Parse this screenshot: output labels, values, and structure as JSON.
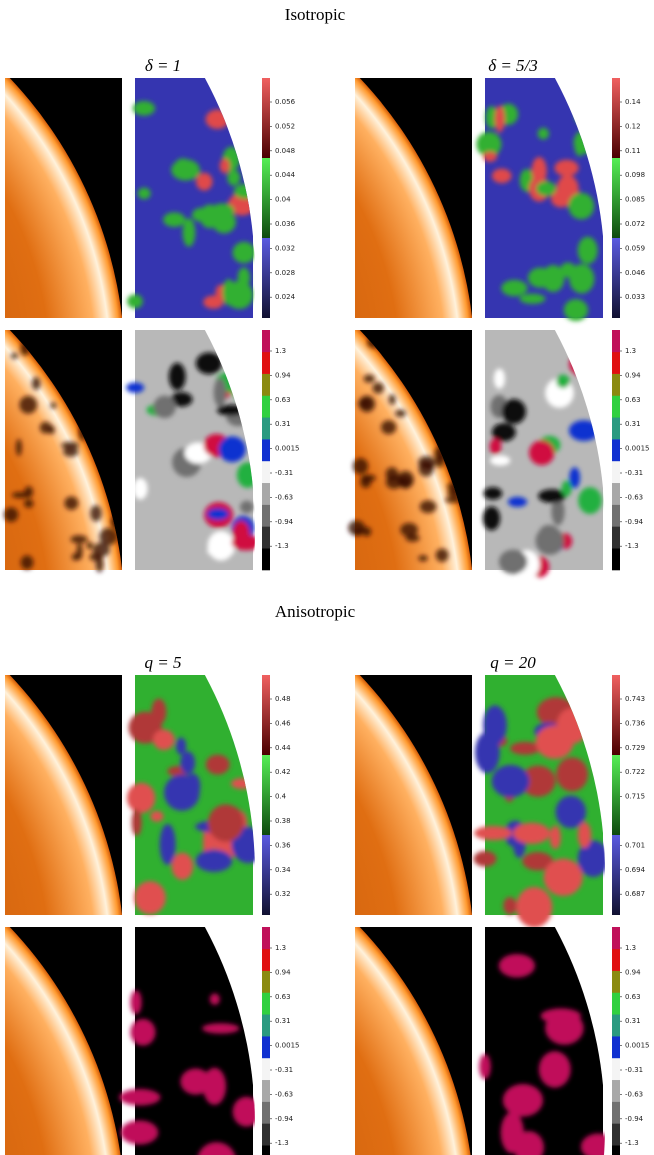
{
  "sections": [
    {
      "title": "Isotropic",
      "panels": [
        {
          "title": "δ = 1",
          "rows": [
            {
              "ticks": [
                "0.056",
                "0.052",
                "0.048",
                "0.044",
                "0.04",
                "0.036",
                "0.032",
                "0.028",
                "0.024"
              ]
            },
            {
              "ticks": [
                "1.3",
                "0.94",
                "0.63",
                "0.31",
                "0.0015",
                "-0.31",
                "-0.63",
                "-0.94",
                "-1.3"
              ]
            }
          ]
        },
        {
          "title": "δ = 5/3",
          "rows": [
            {
              "ticks": [
                "0.14",
                "0.12",
                "0.11",
                "0.098",
                "0.085",
                "0.072",
                "0.059",
                "0.046",
                "0.033"
              ]
            },
            {
              "ticks": [
                "1.3",
                "0.94",
                "0.63",
                "0.31",
                "0.0015",
                "-0.31",
                "-0.63",
                "-0.94",
                "-1.3"
              ]
            }
          ]
        }
      ]
    },
    {
      "title": "Anisotropic",
      "panels": [
        {
          "title": "q = 5",
          "rows": [
            {
              "ticks": [
                "0.48",
                "0.46",
                "0.44",
                "0.42",
                "0.4",
                "0.38",
                "0.36",
                "0.34",
                "0.32"
              ]
            },
            {
              "ticks": [
                "1.3",
                "0.94",
                "0.63",
                "0.31",
                "0.0015",
                "-0.31",
                "-0.63",
                "-0.94",
                "-1.3"
              ]
            }
          ]
        },
        {
          "title": "q = 20",
          "rows": [
            {
              "ticks": [
                "0.743",
                "0.736",
                "0.729",
                "0.722",
                "0.715",
                null,
                "0.701",
                "0.694",
                "0.687"
              ]
            },
            {
              "ticks": [
                "1.3",
                "0.94",
                "0.63",
                "0.31",
                "0.0015",
                "-0.31",
                "-0.63",
                "-0.94",
                "-1.3"
              ]
            }
          ]
        }
      ]
    }
  ]
}
